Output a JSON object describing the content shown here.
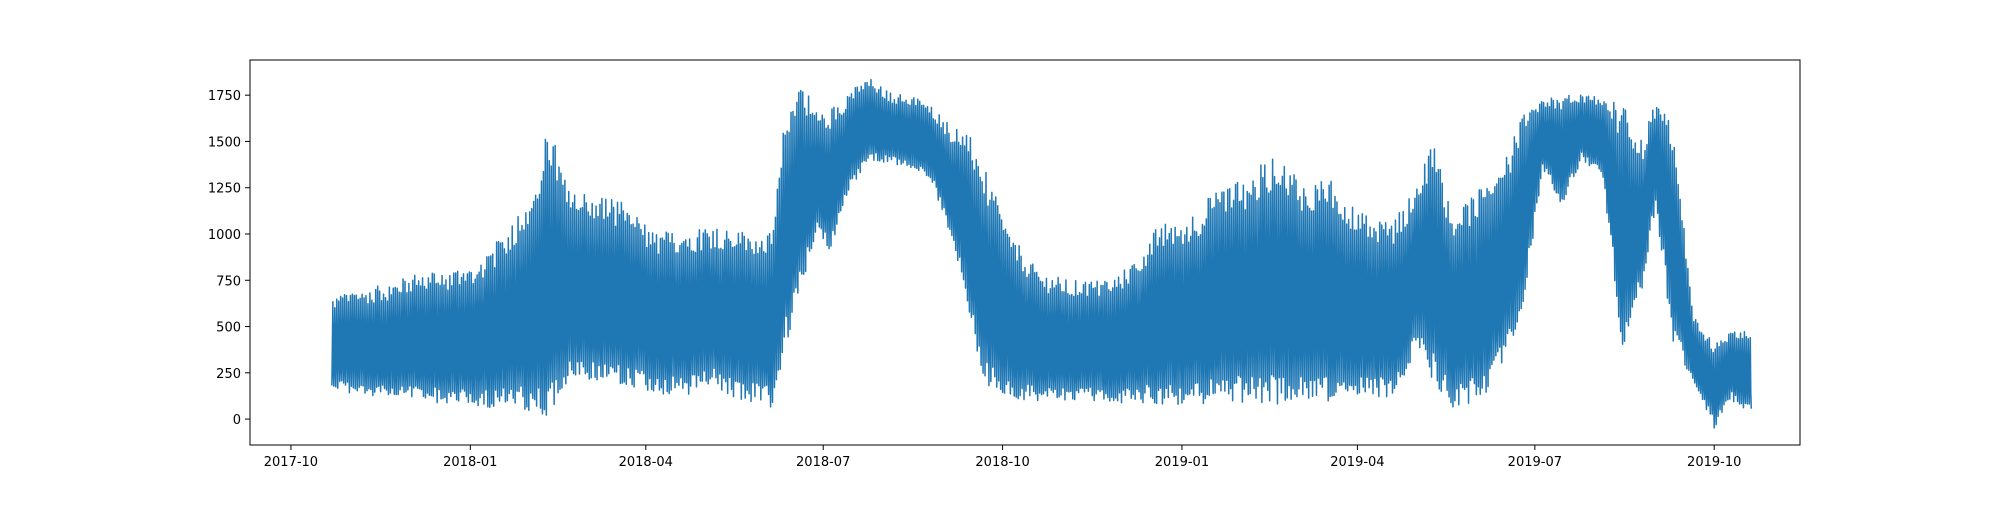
{
  "chart_data": {
    "type": "line",
    "title": "",
    "xlabel": "",
    "ylabel": "",
    "x_tick_labels": [
      "2017-10",
      "2018-01",
      "2018-04",
      "2018-07",
      "2018-10",
      "2019-01",
      "2019-04",
      "2019-07",
      "2019-10"
    ],
    "x_ticks": [
      "2017-10-01",
      "2018-01-01",
      "2018-04-01",
      "2018-07-01",
      "2018-10-01",
      "2019-01-01",
      "2019-04-01",
      "2019-07-01",
      "2019-10-01"
    ],
    "y_tick_labels": [
      "0",
      "250",
      "500",
      "750",
      "1000",
      "1250",
      "1500",
      "1750"
    ],
    "y_ticks": [
      0,
      250,
      500,
      750,
      1000,
      1250,
      1500,
      1750
    ],
    "xlim": [
      "2017-09-10",
      "2019-11-14"
    ],
    "ylim": [
      -140,
      1940
    ],
    "grid": false,
    "line_color": "#1f77b4",
    "series": [
      {
        "x": [
          "2017-10-22",
          "2017-11-05",
          "2017-11-20",
          "2017-12-05",
          "2017-12-20",
          "2018-01-05",
          "2018-01-20",
          "2018-02-05",
          "2018-02-10",
          "2018-02-20",
          "2018-03-05",
          "2018-03-20",
          "2018-04-05",
          "2018-04-20",
          "2018-05-05",
          "2018-05-20",
          "2018-06-05",
          "2018-06-12",
          "2018-06-20",
          "2018-06-28",
          "2018-07-05",
          "2018-07-15",
          "2018-07-25",
          "2018-08-05",
          "2018-08-15",
          "2018-08-25",
          "2018-09-05",
          "2018-09-12",
          "2018-09-20",
          "2018-10-05",
          "2018-10-20",
          "2018-11-05",
          "2018-11-20",
          "2018-12-05",
          "2018-12-20",
          "2019-01-05",
          "2019-01-20",
          "2019-02-05",
          "2019-02-20",
          "2019-03-05",
          "2019-03-20",
          "2019-04-05",
          "2019-04-20",
          "2019-05-02",
          "2019-05-10",
          "2019-05-20",
          "2019-06-05",
          "2019-06-15",
          "2019-06-25",
          "2019-07-05",
          "2019-07-15",
          "2019-07-25",
          "2019-08-05",
          "2019-08-15",
          "2019-08-25",
          "2019-09-01",
          "2019-09-10",
          "2019-09-20",
          "2019-10-01",
          "2019-10-10",
          "2019-10-20"
        ],
        "y_min": [
          160,
          130,
          110,
          100,
          80,
          70,
          50,
          30,
          10,
          180,
          200,
          190,
          140,
          110,
          170,
          100,
          60,
          400,
          700,
          1000,
          900,
          1250,
          1400,
          1380,
          1350,
          1300,
          950,
          700,
          200,
          100,
          100,
          100,
          90,
          80,
          80,
          70,
          80,
          90,
          80,
          100,
          90,
          110,
          100,
          400,
          200,
          60,
          100,
          300,
          600,
          1350,
          1150,
          1400,
          1300,
          350,
          700,
          1150,
          400,
          200,
          -50,
          100,
          30
        ],
        "y_max": [
          660,
          700,
          730,
          790,
          800,
          850,
          1020,
          1320,
          1620,
          1240,
          1220,
          1180,
          1010,
          1020,
          1050,
          1020,
          1000,
          1700,
          1840,
          1650,
          1680,
          1780,
          1840,
          1760,
          1750,
          1700,
          1580,
          1580,
          1400,
          1000,
          790,
          750,
          750,
          820,
          1050,
          1100,
          1250,
          1320,
          1470,
          1280,
          1290,
          1100,
          1080,
          1280,
          1540,
          1080,
          1280,
          1390,
          1640,
          1720,
          1760,
          1750,
          1740,
          1700,
          1500,
          1720,
          1580,
          580,
          400,
          500,
          470
        ]
      }
    ]
  }
}
